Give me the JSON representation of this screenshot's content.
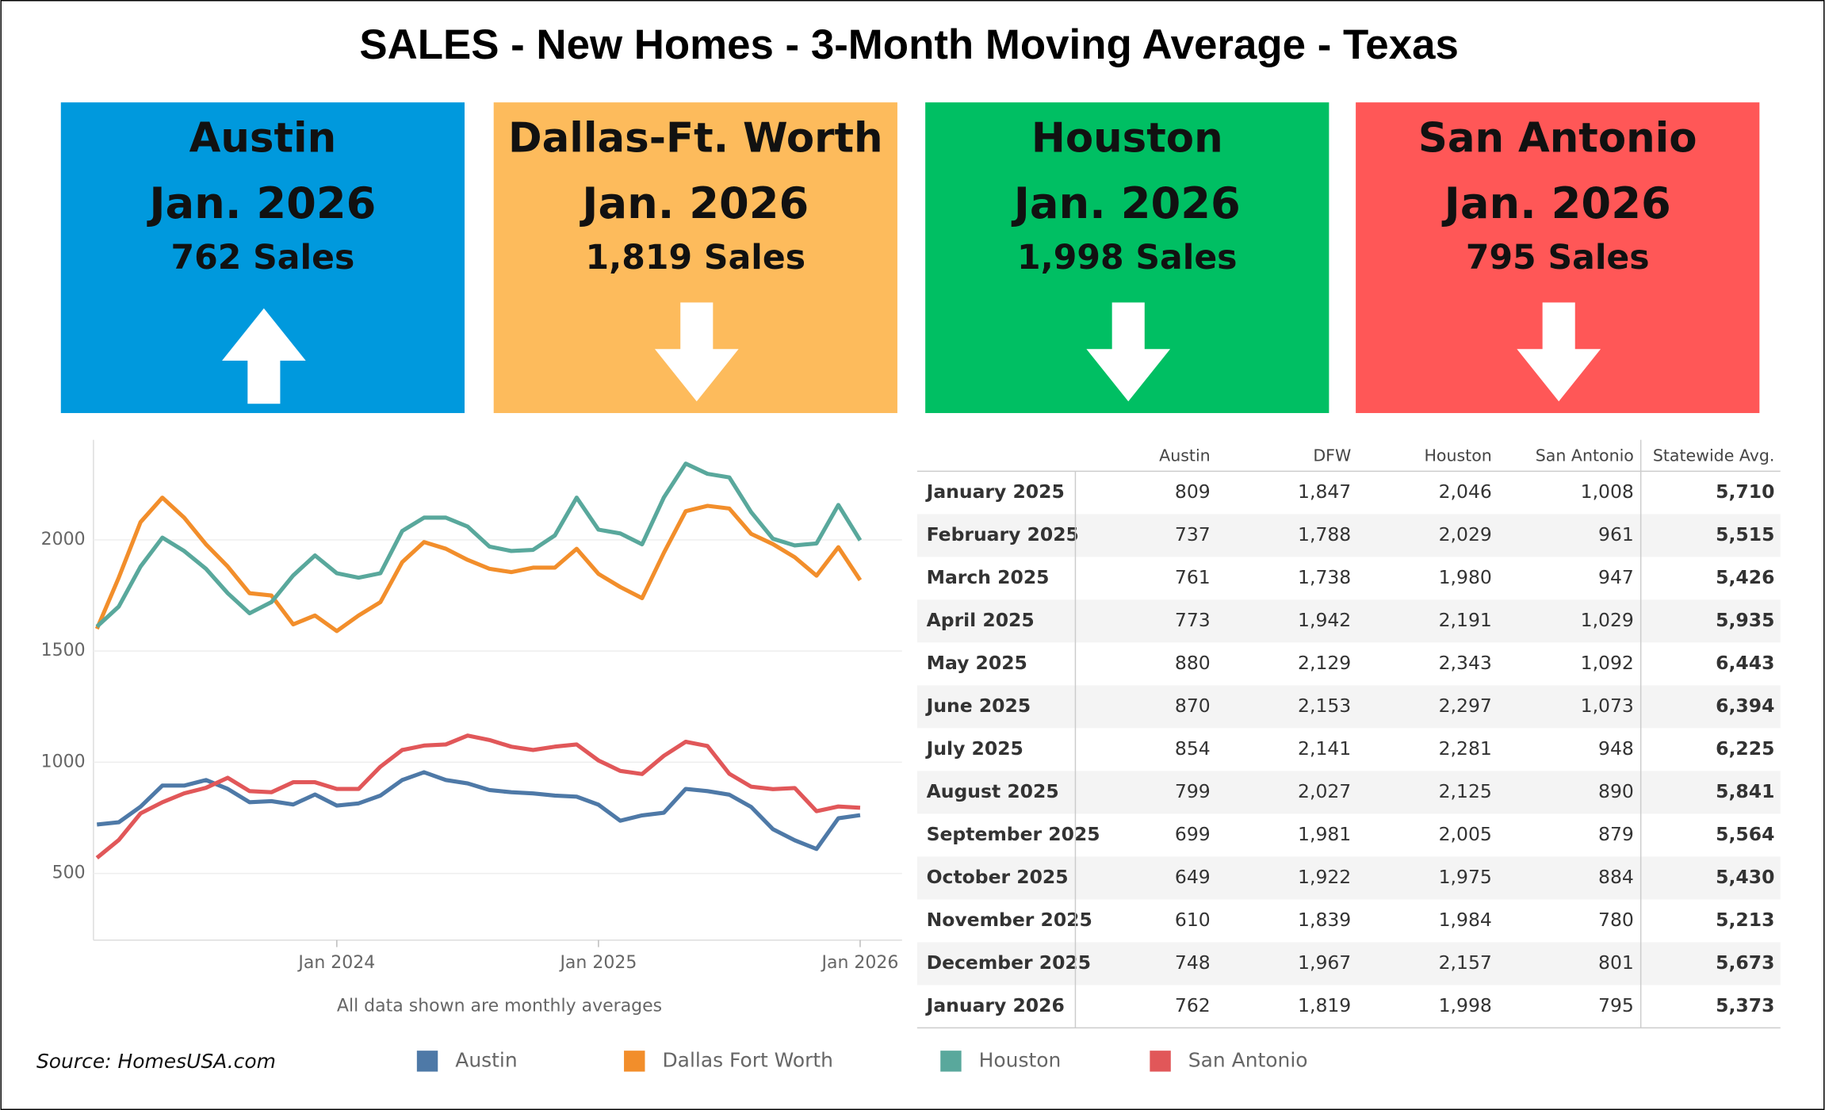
{
  "title": "SALES - New Homes - 3-Month Moving Average - Texas",
  "cards": [
    {
      "city": "Austin",
      "date": "Jan. 2026",
      "sales": "762 Sales",
      "color": "#0099dd",
      "trend": "up"
    },
    {
      "city": "Dallas-Ft. Worth",
      "date": "Jan. 2026",
      "sales": "1,819 Sales",
      "color": "#fdbb5c",
      "trend": "down"
    },
    {
      "city": "Houston",
      "date": "Jan. 2026",
      "sales": "1,998 Sales",
      "color": "#00bf63",
      "trend": "down"
    },
    {
      "city": "San Antonio",
      "date": "Jan. 2026",
      "sales": "795 Sales",
      "color": "#ff5757",
      "trend": "down"
    }
  ],
  "chart_data": {
    "type": "line",
    "caption": "All data shown are monthly averages",
    "x": [
      "2023-02",
      "2023-03",
      "2023-04",
      "2023-05",
      "2023-06",
      "2023-07",
      "2023-08",
      "2023-09",
      "2023-10",
      "2023-11",
      "2023-12",
      "2024-01",
      "2024-02",
      "2024-03",
      "2024-04",
      "2024-05",
      "2024-06",
      "2024-07",
      "2024-08",
      "2024-09",
      "2024-10",
      "2024-11",
      "2024-12",
      "2025-01",
      "2025-02",
      "2025-03",
      "2025-04",
      "2025-05",
      "2025-06",
      "2025-07",
      "2025-08",
      "2025-09",
      "2025-10",
      "2025-11",
      "2025-12",
      "2026-01"
    ],
    "xticks": [
      {
        "value": "2024-01",
        "label": "Jan 2024"
      },
      {
        "value": "2025-01",
        "label": "Jan 2025"
      },
      {
        "value": "2026-01",
        "label": "Jan 2026"
      }
    ],
    "ylim": [
      200,
      2450
    ],
    "yticks": [
      500,
      1000,
      1500,
      2000
    ],
    "grid": true,
    "series": [
      {
        "name": "Austin",
        "color": "#4e79a7",
        "values": [
          720,
          730,
          800,
          895,
          895,
          920,
          880,
          820,
          825,
          810,
          855,
          805,
          815,
          850,
          920,
          955,
          920,
          905,
          875,
          865,
          860,
          850,
          845,
          809,
          737,
          761,
          773,
          880,
          870,
          854,
          799,
          699,
          649,
          610,
          748,
          762
        ]
      },
      {
        "name": "Dallas Fort Worth",
        "color": "#f28e2b",
        "values": [
          1600,
          1830,
          2080,
          2190,
          2100,
          1980,
          1880,
          1760,
          1750,
          1620,
          1660,
          1590,
          1660,
          1720,
          1900,
          1990,
          1960,
          1910,
          1870,
          1855,
          1875,
          1875,
          1960,
          1847,
          1788,
          1738,
          1942,
          2129,
          2153,
          2141,
          2027,
          1981,
          1922,
          1839,
          1967,
          1819
        ]
      },
      {
        "name": "Houston",
        "color": "#59a89c",
        "values": [
          1610,
          1700,
          1880,
          2010,
          1950,
          1870,
          1760,
          1670,
          1720,
          1840,
          1930,
          1850,
          1830,
          1850,
          2040,
          2100,
          2100,
          2060,
          1970,
          1950,
          1955,
          2020,
          2190,
          2046,
          2029,
          1980,
          2191,
          2343,
          2297,
          2281,
          2125,
          2005,
          1975,
          1984,
          2157,
          1998
        ]
      },
      {
        "name": "San Antonio",
        "color": "#e15759",
        "values": [
          570,
          650,
          770,
          820,
          860,
          885,
          930,
          870,
          865,
          910,
          910,
          880,
          880,
          980,
          1055,
          1075,
          1080,
          1120,
          1100,
          1070,
          1055,
          1070,
          1080,
          1008,
          961,
          947,
          1029,
          1092,
          1073,
          948,
          890,
          879,
          884,
          780,
          801,
          795
        ]
      }
    ]
  },
  "table": {
    "columns": [
      "Austin",
      "DFW",
      "Houston",
      "San Antonio",
      "Statewide Avg."
    ],
    "rows": [
      [
        "January 2025",
        "809",
        "1,847",
        "2,046",
        "1,008",
        "5,710"
      ],
      [
        "February 2025",
        "737",
        "1,788",
        "2,029",
        "961",
        "5,515"
      ],
      [
        "March 2025",
        "761",
        "1,738",
        "1,980",
        "947",
        "5,426"
      ],
      [
        "April 2025",
        "773",
        "1,942",
        "2,191",
        "1,029",
        "5,935"
      ],
      [
        "May 2025",
        "880",
        "2,129",
        "2,343",
        "1,092",
        "6,443"
      ],
      [
        "June 2025",
        "870",
        "2,153",
        "2,297",
        "1,073",
        "6,394"
      ],
      [
        "July 2025",
        "854",
        "2,141",
        "2,281",
        "948",
        "6,225"
      ],
      [
        "August 2025",
        "799",
        "2,027",
        "2,125",
        "890",
        "5,841"
      ],
      [
        "September 2025",
        "699",
        "1,981",
        "2,005",
        "879",
        "5,564"
      ],
      [
        "October 2025",
        "649",
        "1,922",
        "1,975",
        "884",
        "5,430"
      ],
      [
        "November 2025",
        "610",
        "1,839",
        "1,984",
        "780",
        "5,213"
      ],
      [
        "December 2025",
        "748",
        "1,967",
        "2,157",
        "801",
        "5,673"
      ],
      [
        "January 2026",
        "762",
        "1,819",
        "1,998",
        "795",
        "5,373"
      ]
    ]
  },
  "source": "Source: HomesUSA.com"
}
